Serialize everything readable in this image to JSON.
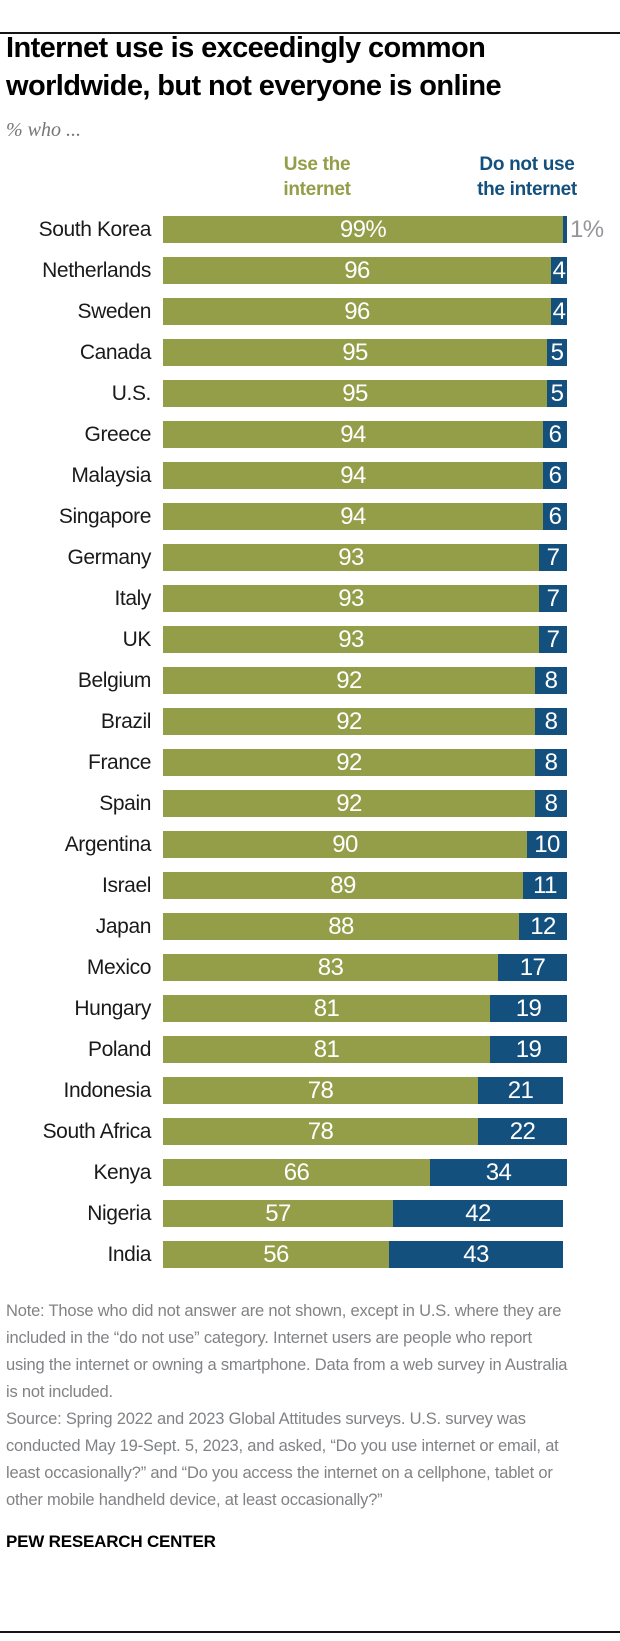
{
  "header": {
    "title_line1": "Internet use is exceedingly common",
    "title_line2": "worldwide, but not everyone is online",
    "subtitle": "% who ...",
    "legend": [
      {
        "label": "Use the\ninternet",
        "color": "#949d48"
      },
      {
        "label": "Do not use\nthe internet",
        "color": "#14507e"
      }
    ]
  },
  "chart_data": {
    "type": "bar",
    "orientation": "horizontal",
    "stacked": true,
    "xlim": [
      0,
      100
    ],
    "grid": false,
    "categories": [
      "South Korea",
      "Netherlands",
      "Sweden",
      "Canada",
      "U.S.",
      "Greece",
      "Malaysia",
      "Singapore",
      "Germany",
      "Italy",
      "UK",
      "Belgium",
      "Brazil",
      "France",
      "Spain",
      "Argentina",
      "Israel",
      "Japan",
      "Mexico",
      "Hungary",
      "Poland",
      "Indonesia",
      "South Africa",
      "Kenya",
      "Nigeria",
      "India"
    ],
    "series": [
      {
        "name": "Use the internet",
        "color": "#949d48",
        "values": [
          99,
          96,
          96,
          95,
          95,
          94,
          94,
          94,
          93,
          93,
          93,
          92,
          92,
          92,
          92,
          90,
          89,
          88,
          83,
          81,
          81,
          78,
          78,
          66,
          57,
          56
        ]
      },
      {
        "name": "Do not use the internet",
        "color": "#14507e",
        "values": [
          1,
          4,
          4,
          5,
          5,
          6,
          6,
          6,
          7,
          7,
          7,
          8,
          8,
          8,
          8,
          10,
          11,
          12,
          17,
          19,
          19,
          21,
          22,
          34,
          42,
          43
        ]
      }
    ],
    "use_labels": [
      "99%",
      "96",
      "96",
      "95",
      "95",
      "94",
      "94",
      "94",
      "93",
      "93",
      "93",
      "92",
      "92",
      "92",
      "92",
      "90",
      "89",
      "88",
      "83",
      "81",
      "81",
      "78",
      "78",
      "66",
      "57",
      "56"
    ],
    "nonuse_labels": [
      "1%",
      "4",
      "4",
      "5",
      "5",
      "6",
      "6",
      "6",
      "7",
      "7",
      "7",
      "8",
      "8",
      "8",
      "8",
      "10",
      "11",
      "12",
      "17",
      "19",
      "19",
      "21",
      "22",
      "34",
      "42",
      "43"
    ],
    "nonuse_label_outside": [
      true,
      false,
      false,
      false,
      false,
      false,
      false,
      false,
      false,
      false,
      false,
      false,
      false,
      false,
      false,
      false,
      false,
      false,
      false,
      false,
      false,
      false,
      false,
      false,
      false,
      false
    ],
    "outside_label_color": "#949599",
    "value_label_color": "#ffffff"
  },
  "footer": {
    "note": "Note: Those who did not answer are not shown, except in U.S. where they are included in the “do not use” category. Internet users are people who report using the internet or owning a smartphone. Data from a web survey in Australia is not included.",
    "source": "Source: Spring 2022 and 2023 Global Attitudes surveys. U.S. survey was conducted May 19-Sept. 5, 2023, and asked, “Do you use internet or email, at least occasionally?” and “Do you access the internet on a cellphone, tablet or other mobile handheld device, at least occasionally?”",
    "brand": "PEW RESEARCH CENTER"
  }
}
